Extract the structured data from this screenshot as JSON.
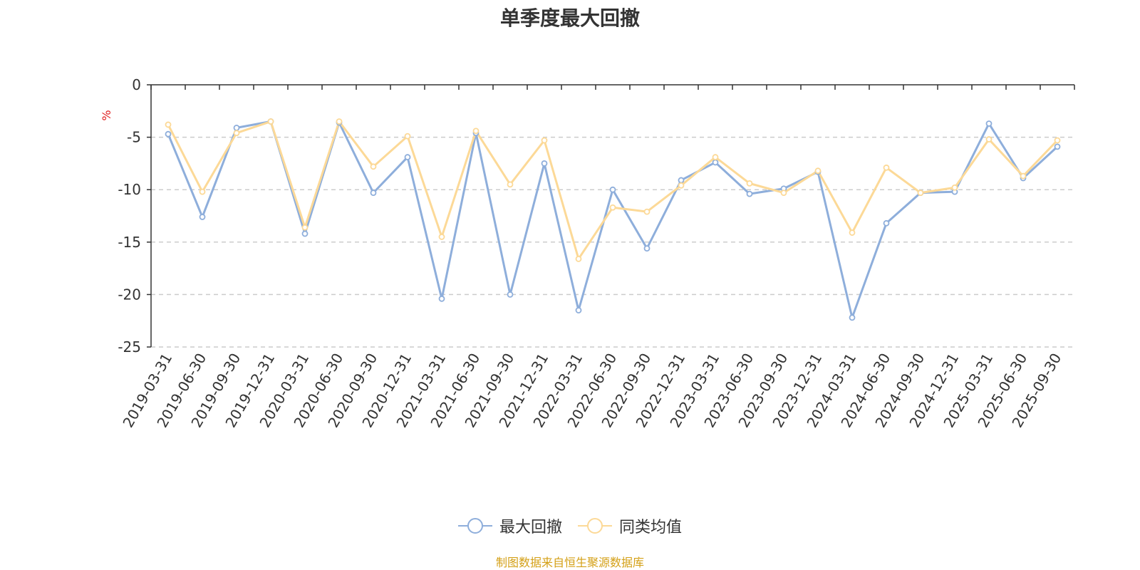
{
  "chart_data": {
    "type": "line",
    "title": "单季度最大回撤",
    "ylabel": "%",
    "xlabel": "",
    "ylim": [
      -25,
      0
    ],
    "yticks": [
      0,
      -5,
      -10,
      -15,
      -20,
      -25
    ],
    "grid": true,
    "legend_position": "bottom",
    "categories": [
      "2019-03-31",
      "2019-06-30",
      "2019-09-30",
      "2019-12-31",
      "2020-03-31",
      "2020-06-30",
      "2020-09-30",
      "2020-12-31",
      "2021-03-31",
      "2021-06-30",
      "2021-09-30",
      "2021-12-31",
      "2022-03-31",
      "2022-06-30",
      "2022-09-30",
      "2022-12-31",
      "2023-03-31",
      "2023-06-30",
      "2023-09-30",
      "2023-12-31",
      "2024-03-31",
      "2024-06-30",
      "2024-09-30",
      "2024-12-31",
      "2025-03-31",
      "2025-06-30",
      "2025-09-30"
    ],
    "series": [
      {
        "name": "最大回撤",
        "color": "#8eaedb",
        "values": [
          -4.7,
          -12.6,
          -4.1,
          -3.5,
          -14.2,
          -3.6,
          -10.3,
          -6.9,
          -20.4,
          -4.6,
          -20.0,
          -7.5,
          -21.5,
          -10.0,
          -15.6,
          -9.1,
          -7.4,
          -10.4,
          -9.9,
          -8.3,
          -22.2,
          -13.2,
          -10.3,
          -10.2,
          -3.7,
          -8.9,
          -5.9
        ]
      },
      {
        "name": "同类均值",
        "color": "#fcd997",
        "values": [
          -3.8,
          -10.2,
          -4.6,
          -3.5,
          -13.6,
          -3.5,
          -7.8,
          -4.9,
          -14.5,
          -4.4,
          -9.5,
          -5.3,
          -16.6,
          -11.7,
          -12.1,
          -9.6,
          -6.9,
          -9.4,
          -10.3,
          -8.2,
          -14.1,
          -7.9,
          -10.3,
          -9.8,
          -5.2,
          -8.7,
          -5.3
        ]
      }
    ]
  },
  "footer": {
    "source": "制图数据来自恒生聚源数据库"
  }
}
